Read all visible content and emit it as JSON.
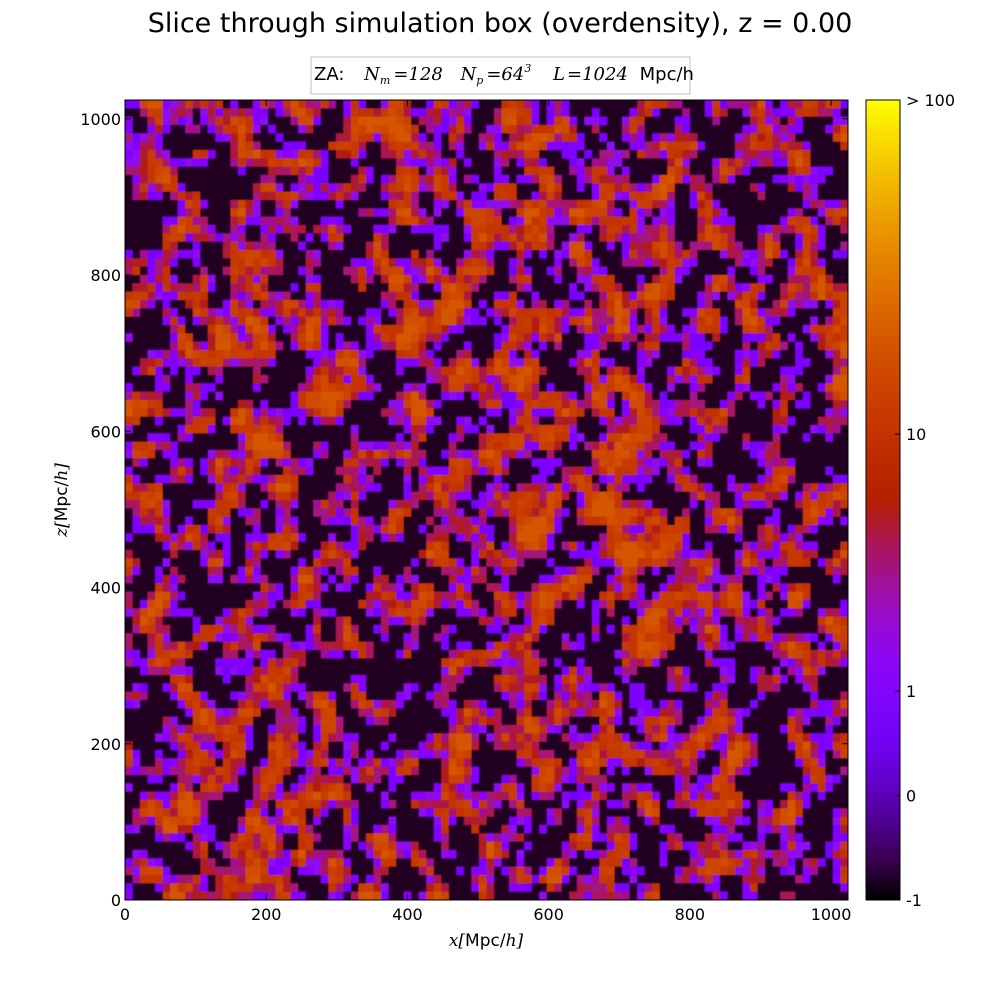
{
  "chart_data": {
    "type": "heatmap",
    "title": "Slice through simulation box (overdensity), z = 0.00",
    "annotation": {
      "prefix": "ZA:",
      "nm_symbol": "N",
      "nm_sub": "m",
      "nm_value": "=128",
      "np_symbol": "N",
      "np_sub": "p",
      "np_value": "=64",
      "np_exp": "3",
      "l_symbol": "L",
      "l_value": "=1024",
      "unit": "Mpc/h"
    },
    "xlabel": {
      "var": "x",
      "unit": "Mpc/",
      "h": "h"
    },
    "ylabel": {
      "var": "z",
      "unit": "Mpc/",
      "h": "h"
    },
    "xlim": [
      0,
      1024
    ],
    "ylim": [
      0,
      1024
    ],
    "xticks": [
      0,
      200,
      400,
      600,
      800,
      1000
    ],
    "yticks": [
      0,
      200,
      400,
      600,
      800,
      1000
    ],
    "colorbar": {
      "colormap": "gnuplot",
      "ticks": [
        {
          "value": -1,
          "label": "-1"
        },
        {
          "value": 0,
          "label": "0"
        },
        {
          "value": 1,
          "label": "1"
        },
        {
          "value": 10,
          "label": "10"
        },
        {
          "value": 100,
          "label": "> 100"
        }
      ]
    }
  }
}
